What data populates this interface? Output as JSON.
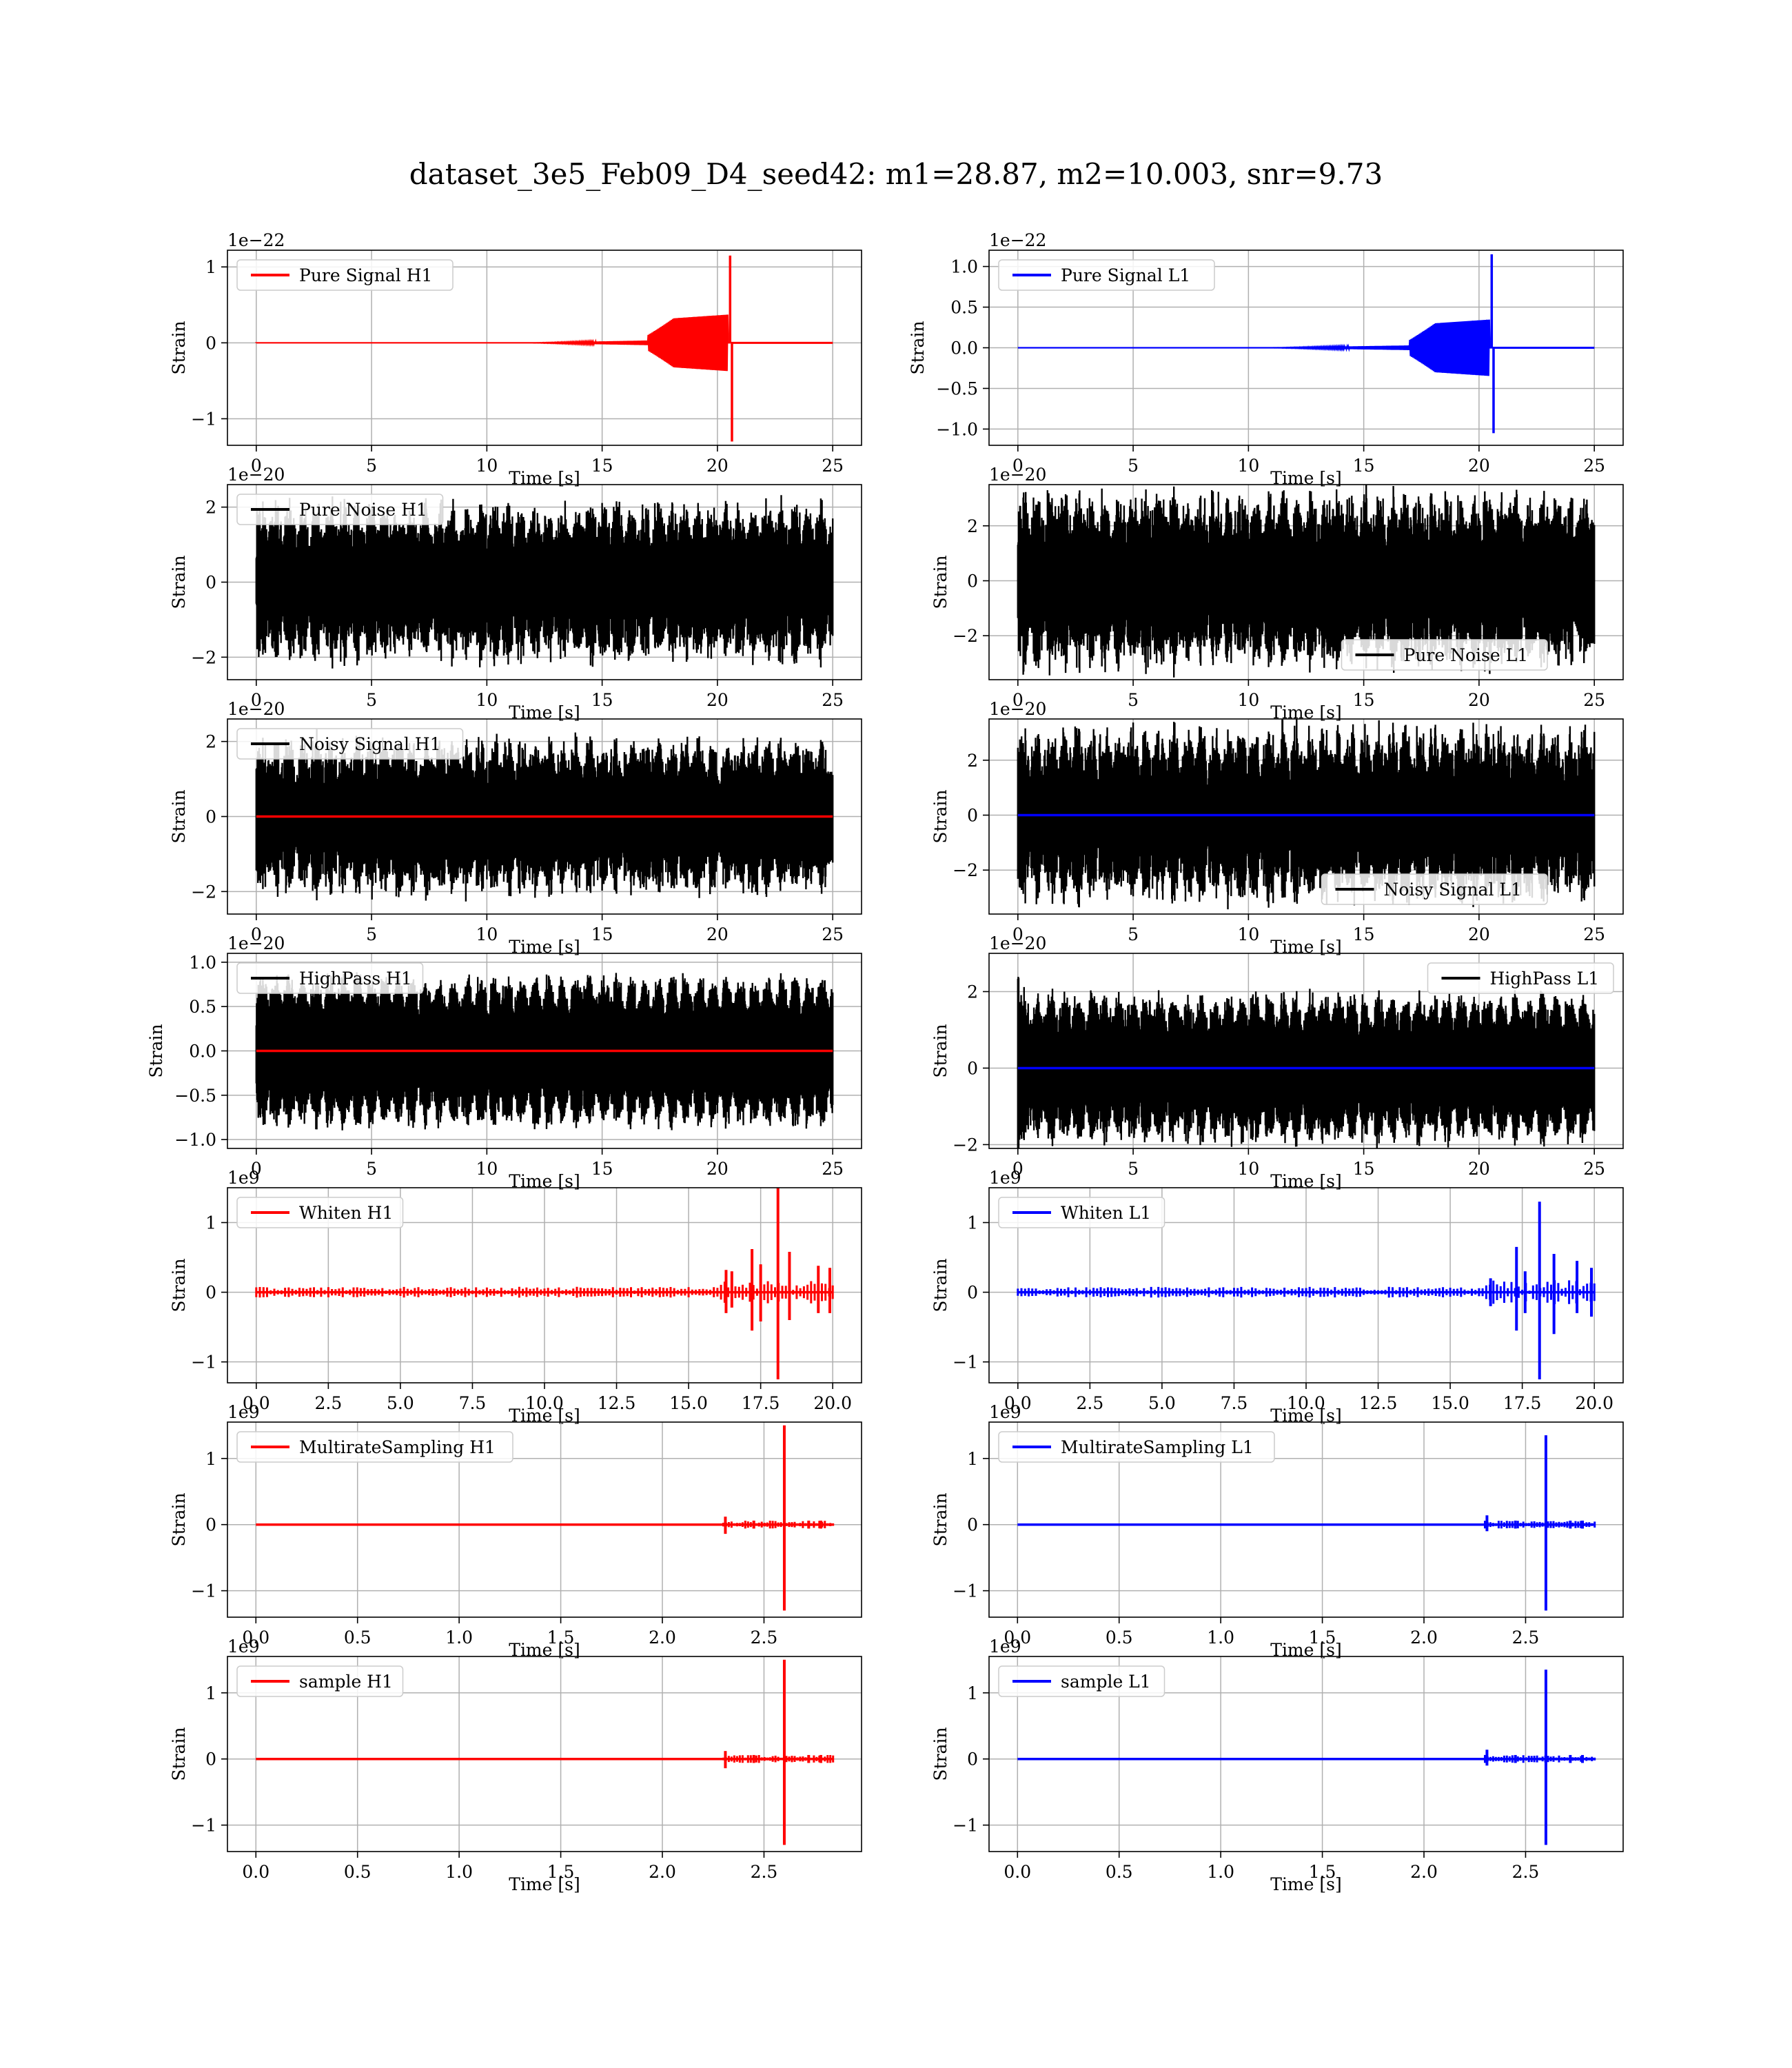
{
  "title": "dataset_3e5_Feb09_D4_seed42: m1=28.87, m2=10.003, snr=9.73",
  "colors": {
    "h1": "#ff0000",
    "l1": "#0000ff",
    "noise": "#000000",
    "grid": "#b0b0b0"
  },
  "chart_data": [
    {
      "type": "line",
      "detector": "H1",
      "kind": "chirp",
      "legend": "Pure Signal H1",
      "legend_pos": "upper-left",
      "xlim": [
        -1.25,
        26.25
      ],
      "ylim": [
        -1.35,
        1.22
      ],
      "xticks": [
        0,
        5,
        10,
        15,
        20,
        25
      ],
      "xticklabels": [
        "0",
        "5",
        "10",
        "15",
        "20",
        "25"
      ],
      "yticks": [
        -1,
        0,
        1
      ],
      "yticklabels": [
        "−1",
        "0",
        "1"
      ],
      "offset": "1e−22",
      "xlabel": "Time [s]",
      "ylabel": "Strain",
      "series": [
        {
          "name": "Pure Signal H1",
          "color": "#ff0000",
          "envelope": {
            "x_end": 25,
            "onset": 12,
            "grow_start": 17,
            "merger": 20.6,
            "pre_amp": 0.3,
            "peak_max": 1.15,
            "peak_min": -1.3
          }
        }
      ]
    },
    {
      "type": "line",
      "detector": "L1",
      "kind": "chirp",
      "legend": "Pure Signal L1",
      "legend_pos": "upper-left",
      "xlim": [
        -1.25,
        26.25
      ],
      "ylim": [
        -1.2,
        1.2
      ],
      "xticks": [
        0,
        5,
        10,
        15,
        20,
        25
      ],
      "xticklabels": [
        "0",
        "5",
        "10",
        "15",
        "20",
        "25"
      ],
      "yticks": [
        -1.0,
        -0.5,
        0.0,
        0.5,
        1.0
      ],
      "yticklabels": [
        "−1.0",
        "−0.5",
        "0.0",
        "0.5",
        "1.0"
      ],
      "offset": "1e−22",
      "xlabel": "Time [s]",
      "ylabel": "Strain",
      "series": [
        {
          "name": "Pure Signal L1",
          "color": "#0000ff",
          "envelope": {
            "x_end": 25,
            "onset": 11,
            "grow_start": 17,
            "merger": 20.6,
            "pre_amp": 0.28,
            "peak_max": 1.15,
            "peak_min": -1.05
          }
        }
      ]
    },
    {
      "type": "line",
      "detector": "H1",
      "kind": "noise",
      "legend": "Pure Noise H1",
      "legend_pos": "upper-left",
      "xlim": [
        -1.25,
        26.25
      ],
      "ylim": [
        -2.6,
        2.6
      ],
      "xticks": [
        0,
        5,
        10,
        15,
        20,
        25
      ],
      "xticklabels": [
        "0",
        "5",
        "10",
        "15",
        "20",
        "25"
      ],
      "yticks": [
        -2,
        0,
        2
      ],
      "yticklabels": [
        "−2",
        "0",
        "2"
      ],
      "offset": "1e−20",
      "xlabel": "Time [s]",
      "ylabel": "Strain",
      "series": [
        {
          "name": "Pure Noise H1",
          "color": "#000000",
          "amp": 1.6,
          "spread": 0.55,
          "overlay": false
        }
      ]
    },
    {
      "type": "line",
      "detector": "L1",
      "kind": "noise",
      "legend": "Pure Noise L1",
      "legend_pos": "lower-right",
      "xlim": [
        -1.25,
        26.25
      ],
      "ylim": [
        -3.6,
        3.5
      ],
      "xticks": [
        0,
        5,
        10,
        15,
        20,
        25
      ],
      "xticklabels": [
        "0",
        "5",
        "10",
        "15",
        "20",
        "25"
      ],
      "yticks": [
        -2,
        0,
        2
      ],
      "yticklabels": [
        "−2",
        "0",
        "2"
      ],
      "offset": "1e−20",
      "xlabel": "Time [s]",
      "ylabel": "Strain",
      "series": [
        {
          "name": "Pure Noise L1",
          "color": "#000000",
          "amp": 2.4,
          "spread": 0.6,
          "overlay": false
        }
      ]
    },
    {
      "type": "line",
      "detector": "H1",
      "kind": "noise",
      "legend": "Noisy Signal H1",
      "legend_pos": "upper-left",
      "xlim": [
        -1.25,
        26.25
      ],
      "ylim": [
        -2.6,
        2.6
      ],
      "xticks": [
        0,
        5,
        10,
        15,
        20,
        25
      ],
      "xticklabels": [
        "0",
        "5",
        "10",
        "15",
        "20",
        "25"
      ],
      "yticks": [
        -2,
        0,
        2
      ],
      "yticklabels": [
        "−2",
        "0",
        "2"
      ],
      "offset": "1e−20",
      "xlabel": "Time [s]",
      "ylabel": "Strain",
      "series": [
        {
          "name": "Noisy Signal H1",
          "color": "#000000",
          "amp": 1.6,
          "spread": 0.55,
          "overlay": true,
          "overlay_color": "#ff0000"
        }
      ]
    },
    {
      "type": "line",
      "detector": "L1",
      "kind": "noise",
      "legend": "Noisy Signal L1",
      "legend_pos": "lower-right",
      "xlim": [
        -1.25,
        26.25
      ],
      "ylim": [
        -3.6,
        3.5
      ],
      "xticks": [
        0,
        5,
        10,
        15,
        20,
        25
      ],
      "xticklabels": [
        "0",
        "5",
        "10",
        "15",
        "20",
        "25"
      ],
      "yticks": [
        -2,
        0,
        2
      ],
      "yticklabels": [
        "−2",
        "0",
        "2"
      ],
      "offset": "1e−20",
      "xlabel": "Time [s]",
      "ylabel": "Strain",
      "series": [
        {
          "name": "Noisy Signal L1",
          "color": "#000000",
          "amp": 2.4,
          "spread": 0.6,
          "overlay": true,
          "overlay_color": "#0000ff"
        }
      ]
    },
    {
      "type": "line",
      "detector": "H1",
      "kind": "noise",
      "legend": "HighPass H1",
      "legend_pos": "upper-left",
      "xlim": [
        -1.25,
        26.25
      ],
      "ylim": [
        -1.1,
        1.1
      ],
      "xticks": [
        0,
        5,
        10,
        15,
        20,
        25
      ],
      "xticklabels": [
        "0",
        "5",
        "10",
        "15",
        "20",
        "25"
      ],
      "yticks": [
        -1.0,
        -0.5,
        0.0,
        0.5,
        1.0
      ],
      "yticklabels": [
        "−1.0",
        "−0.5",
        "0.0",
        "0.5",
        "1.0"
      ],
      "offset": "1e−20",
      "xlabel": "Time [s]",
      "ylabel": "Strain",
      "series": [
        {
          "name": "HighPass H1",
          "color": "#000000",
          "amp": 0.72,
          "spread": 0.25,
          "overlay": true,
          "overlay_color": "#ff0000"
        }
      ]
    },
    {
      "type": "line",
      "detector": "L1",
      "kind": "noise",
      "legend": "HighPass L1",
      "legend_pos": "upper-right",
      "xlim": [
        -1.25,
        26.25
      ],
      "ylim": [
        -2.1,
        3.0
      ],
      "xticks": [
        0,
        5,
        10,
        15,
        20,
        25
      ],
      "xticklabels": [
        "0",
        "5",
        "10",
        "15",
        "20",
        "25"
      ],
      "yticks": [
        -2,
        0,
        2
      ],
      "yticklabels": [
        "−2",
        "0",
        "2"
      ],
      "offset": "1e−20",
      "xlabel": "Time [s]",
      "ylabel": "Strain",
      "series": [
        {
          "name": "HighPass L1",
          "color": "#000000",
          "amp": 1.6,
          "spread": 0.35,
          "overlay": true,
          "overlay_color": "#0000ff",
          "start_spike": 2.6
        }
      ]
    },
    {
      "type": "line",
      "detector": "H1",
      "kind": "spikes",
      "legend": "Whiten H1",
      "legend_pos": "upper-left",
      "xlim": [
        -1.0,
        21.0
      ],
      "ylim": [
        -1.3,
        1.5
      ],
      "xticks": [
        0,
        2.5,
        5,
        7.5,
        10,
        12.5,
        15,
        17.5,
        20
      ],
      "xticklabels": [
        "0.0",
        "2.5",
        "5.0",
        "7.5",
        "10.0",
        "12.5",
        "15.0",
        "17.5",
        "20.0"
      ],
      "yticks": [
        -1,
        0,
        1
      ],
      "yticklabels": [
        "−1",
        "0",
        "1"
      ],
      "offset": "1e9",
      "xlabel": "Time [s]",
      "ylabel": "Strain",
      "series": [
        {
          "name": "Whiten H1",
          "color": "#ff0000",
          "x_end": 20,
          "base": 0.06,
          "spikes": [
            [
              16.3,
              0.32,
              -0.3
            ],
            [
              16.5,
              0.3,
              -0.22
            ],
            [
              17.2,
              0.62,
              -0.55
            ],
            [
              17.5,
              0.4,
              -0.42
            ],
            [
              18.1,
              1.5,
              -1.25
            ],
            [
              18.5,
              0.58,
              -0.4
            ],
            [
              19.5,
              0.38,
              -0.3
            ],
            [
              19.9,
              0.35,
              -0.3
            ]
          ]
        }
      ]
    },
    {
      "type": "line",
      "detector": "L1",
      "kind": "spikes",
      "legend": "Whiten L1",
      "legend_pos": "upper-left",
      "xlim": [
        -1.0,
        21.0
      ],
      "ylim": [
        -1.3,
        1.5
      ],
      "xticks": [
        0,
        2.5,
        5,
        7.5,
        10,
        12.5,
        15,
        17.5,
        20
      ],
      "xticklabels": [
        "0.0",
        "2.5",
        "5.0",
        "7.5",
        "10.0",
        "12.5",
        "15.0",
        "17.5",
        "20.0"
      ],
      "yticks": [
        -1,
        0,
        1
      ],
      "yticklabels": [
        "−1",
        "0",
        "1"
      ],
      "offset": "1e9",
      "xlabel": "Time [s]",
      "ylabel": "Strain",
      "series": [
        {
          "name": "Whiten L1",
          "color": "#0000ff",
          "x_end": 20,
          "base": 0.06,
          "spikes": [
            [
              16.4,
              0.2,
              -0.2
            ],
            [
              17.3,
              0.65,
              -0.55
            ],
            [
              17.6,
              0.3,
              -0.3
            ],
            [
              18.1,
              1.3,
              -1.25
            ],
            [
              18.6,
              0.55,
              -0.6
            ],
            [
              19.4,
              0.45,
              -0.3
            ],
            [
              19.9,
              0.35,
              -0.35
            ]
          ]
        }
      ]
    },
    {
      "type": "line",
      "detector": "H1",
      "kind": "spikes",
      "legend": "MultirateSampling H1",
      "legend_pos": "upper-left",
      "xlim": [
        -0.14,
        2.98
      ],
      "ylim": [
        -1.4,
        1.55
      ],
      "xticks": [
        0,
        0.5,
        1.0,
        1.5,
        2.0,
        2.5
      ],
      "xticklabels": [
        "0.0",
        "0.5",
        "1.0",
        "1.5",
        "2.0",
        "2.5"
      ],
      "yticks": [
        -1,
        0,
        1
      ],
      "yticklabels": [
        "−1",
        "0",
        "1"
      ],
      "offset": "1e9",
      "xlabel": "Time [s]",
      "ylabel": "Strain",
      "series": [
        {
          "name": "MultirateSampling H1",
          "color": "#ff0000",
          "x_end": 2.84,
          "base": 0.0,
          "tail_start": 2.3,
          "tail_amp": 0.06,
          "spikes": [
            [
              2.31,
              0.12,
              -0.14
            ],
            [
              2.45,
              0.06,
              -0.06
            ],
            [
              2.6,
              1.5,
              -1.3
            ],
            [
              2.72,
              0.06,
              -0.06
            ],
            [
              2.78,
              0.06,
              -0.06
            ]
          ]
        }
      ]
    },
    {
      "type": "line",
      "detector": "L1",
      "kind": "spikes",
      "legend": "MultirateSampling L1",
      "legend_pos": "upper-left",
      "xlim": [
        -0.14,
        2.98
      ],
      "ylim": [
        -1.4,
        1.55
      ],
      "xticks": [
        0,
        0.5,
        1.0,
        1.5,
        2.0,
        2.5
      ],
      "xticklabels": [
        "0.0",
        "0.5",
        "1.0",
        "1.5",
        "2.0",
        "2.5"
      ],
      "yticks": [
        -1,
        0,
        1
      ],
      "yticklabels": [
        "−1",
        "0",
        "1"
      ],
      "offset": "1e9",
      "xlabel": "Time [s]",
      "ylabel": "Strain",
      "series": [
        {
          "name": "MultirateSampling L1",
          "color": "#0000ff",
          "x_end": 2.84,
          "base": 0.0,
          "tail_start": 2.3,
          "tail_amp": 0.06,
          "spikes": [
            [
              2.31,
              0.14,
              -0.1
            ],
            [
              2.45,
              0.06,
              -0.06
            ],
            [
              2.6,
              1.35,
              -1.3
            ],
            [
              2.72,
              0.06,
              -0.06
            ],
            [
              2.78,
              0.06,
              -0.06
            ]
          ]
        }
      ]
    },
    {
      "type": "line",
      "detector": "H1",
      "kind": "spikes",
      "legend": "sample H1",
      "legend_pos": "upper-left",
      "xlim": [
        -0.14,
        2.98
      ],
      "ylim": [
        -1.4,
        1.55
      ],
      "xticks": [
        0,
        0.5,
        1.0,
        1.5,
        2.0,
        2.5
      ],
      "xticklabels": [
        "0.0",
        "0.5",
        "1.0",
        "1.5",
        "2.0",
        "2.5"
      ],
      "yticks": [
        -1,
        0,
        1
      ],
      "yticklabels": [
        "−1",
        "0",
        "1"
      ],
      "offset": "1e9",
      "xlabel": "Time [s]",
      "ylabel": "Strain",
      "series": [
        {
          "name": "sample H1",
          "color": "#ff0000",
          "x_end": 2.84,
          "base": 0.0,
          "tail_start": 2.3,
          "tail_amp": 0.06,
          "spikes": [
            [
              2.31,
              0.12,
              -0.14
            ],
            [
              2.45,
              0.06,
              -0.06
            ],
            [
              2.6,
              1.5,
              -1.3
            ],
            [
              2.72,
              0.06,
              -0.06
            ],
            [
              2.78,
              0.06,
              -0.06
            ]
          ]
        }
      ]
    },
    {
      "type": "line",
      "detector": "L1",
      "kind": "spikes",
      "legend": "sample L1",
      "legend_pos": "upper-left",
      "xlim": [
        -0.14,
        2.98
      ],
      "ylim": [
        -1.4,
        1.55
      ],
      "xticks": [
        0,
        0.5,
        1.0,
        1.5,
        2.0,
        2.5
      ],
      "xticklabels": [
        "0.0",
        "0.5",
        "1.0",
        "1.5",
        "2.0",
        "2.5"
      ],
      "yticks": [
        -1,
        0,
        1
      ],
      "yticklabels": [
        "−1",
        "0",
        "1"
      ],
      "offset": "1e9",
      "xlabel": "Time [s]",
      "ylabel": "Strain",
      "series": [
        {
          "name": "sample L1",
          "color": "#0000ff",
          "x_end": 2.84,
          "base": 0.0,
          "tail_start": 2.3,
          "tail_amp": 0.06,
          "spikes": [
            [
              2.31,
              0.14,
              -0.1
            ],
            [
              2.45,
              0.06,
              -0.06
            ],
            [
              2.6,
              1.35,
              -1.3
            ],
            [
              2.72,
              0.06,
              -0.06
            ],
            [
              2.78,
              0.06,
              -0.06
            ]
          ]
        }
      ]
    }
  ]
}
